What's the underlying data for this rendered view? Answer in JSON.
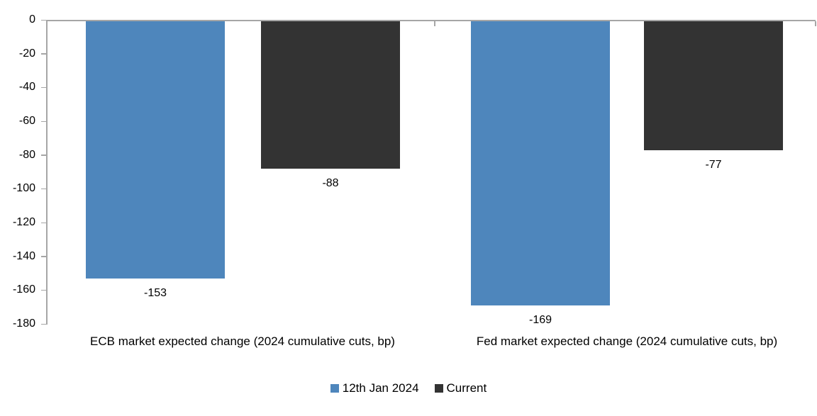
{
  "chart_data": {
    "type": "bar",
    "title": "",
    "xlabel": "",
    "ylabel": "",
    "categories": [
      "ECB market expected change (2024 cumulative cuts, bp)",
      "Fed market expected change (2024 cumulative cuts, bp)"
    ],
    "series": [
      {
        "name": "12th Jan 2024",
        "color": "#4E86BC",
        "values": [
          -153,
          -169
        ]
      },
      {
        "name": "Current",
        "color": "#333333",
        "values": [
          -88,
          -77
        ]
      }
    ],
    "data_labels": [
      "-153",
      "-88",
      "-169",
      "-77"
    ],
    "ylim": [
      -180,
      0
    ],
    "y_ticks": [
      0,
      -20,
      -40,
      -60,
      -80,
      -100,
      -120,
      -140,
      -160,
      -180
    ],
    "y_tick_labels": [
      "0",
      "-20",
      "-40",
      "-60",
      "-80",
      "-100",
      "-120",
      "-140",
      "-160",
      "-180"
    ],
    "grid": false,
    "legend_position": "bottom",
    "axis_color": "#A6A6A6",
    "text_color": "#000000",
    "background_color": "#FFFFFF"
  }
}
